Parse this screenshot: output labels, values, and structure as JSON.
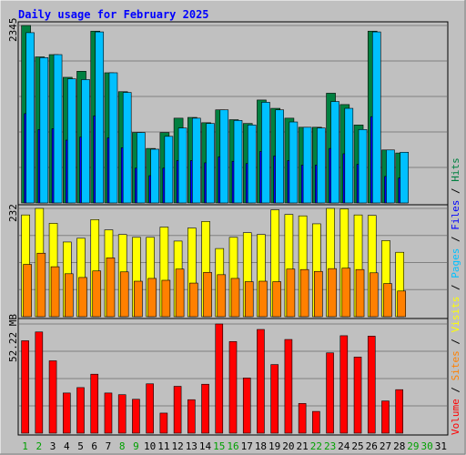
{
  "chart_data": {
    "type": "bar",
    "title": "Daily usage for February 2025",
    "days": [
      "1",
      "2",
      "3",
      "4",
      "5",
      "6",
      "7",
      "8",
      "9",
      "10",
      "11",
      "12",
      "13",
      "14",
      "15",
      "16",
      "17",
      "18",
      "19",
      "20",
      "21",
      "22",
      "23",
      "24",
      "25",
      "26",
      "27",
      "28",
      "29",
      "30",
      "31"
    ],
    "weekend_days": [
      1,
      2,
      8,
      9,
      15,
      16,
      22,
      23,
      29,
      30
    ],
    "hits_panel": {
      "max_label": "2345",
      "series": [
        {
          "name": "Hits",
          "color": "#008040",
          "values": [
            2345,
            1930,
            1960,
            1660,
            1740,
            2270,
            1720,
            1470,
            930,
            720,
            930,
            1120,
            1130,
            1060,
            1230,
            1100,
            1050,
            1360,
            1250,
            1120,
            1000,
            1000,
            1450,
            1300,
            1030,
            2270,
            700,
            660
          ]
        },
        {
          "name": "Files",
          "color": "#0000ff",
          "values": [
            1180,
            970,
            980,
            830,
            870,
            1150,
            860,
            730,
            460,
            360,
            460,
            560,
            560,
            530,
            610,
            550,
            520,
            680,
            620,
            560,
            500,
            500,
            720,
            650,
            510,
            1140,
            350,
            330
          ]
        },
        {
          "name": "Pages",
          "color": "#00c0ff",
          "values": [
            2250,
            1920,
            1960,
            1640,
            1630,
            2260,
            1720,
            1460,
            930,
            710,
            880,
            990,
            1120,
            1050,
            1230,
            1090,
            1030,
            1330,
            1230,
            1070,
            1000,
            990,
            1340,
            1250,
            970,
            2260,
            700,
            670
          ]
        }
      ]
    },
    "visits_panel": {
      "max_label": "232",
      "series": [
        {
          "name": "Visits",
          "color": "#ffff00",
          "values": [
            218,
            232,
            200,
            160,
            168,
            208,
            186,
            176,
            170,
            170,
            192,
            162,
            190,
            204,
            146,
            170,
            180,
            176,
            229,
            219,
            216,
            199,
            232,
            231,
            218,
            217,
            163,
            138
          ]
        },
        {
          "name": "Sites",
          "color": "#ff8000",
          "values": [
            112,
            136,
            107,
            92,
            84,
            98,
            126,
            96,
            76,
            82,
            78,
            102,
            72,
            95,
            90,
            82,
            75,
            76,
            75,
            102,
            101,
            97,
            103,
            104,
            101,
            94,
            71,
            55
          ]
        }
      ]
    },
    "volume_panel": {
      "max_label": "52.22 MB",
      "series": [
        {
          "name": "Volume",
          "color": "#ff0000",
          "values": [
            44.2,
            48.4,
            34.6,
            19.2,
            21.8,
            28.2,
            19.2,
            18.4,
            16.2,
            23.6,
            9.6,
            22.4,
            16.0,
            23.4,
            52.22,
            43.8,
            26.4,
            49.6,
            32.8,
            44.8,
            14.2,
            10.4,
            38.4,
            46.6,
            36.4,
            46.4,
            15.4,
            20.8
          ]
        }
      ]
    },
    "legend_order": [
      "Volume",
      "Sites",
      "Visits",
      "Pages",
      "Files",
      "Hits"
    ],
    "legend_colors": {
      "Volume": "#ff0000",
      "Sites": "#ff8000",
      "Visits": "#ffff00",
      "Pages": "#00c0ff",
      "Files": "#0000ff",
      "Hits": "#008040"
    },
    "grid": true
  },
  "colors": {
    "background": "#c0c0c0",
    "title": "#0000ff",
    "weekend_label": "#00a000",
    "weekday_label": "#000000",
    "grid": "#808080",
    "separator": "#000000"
  }
}
